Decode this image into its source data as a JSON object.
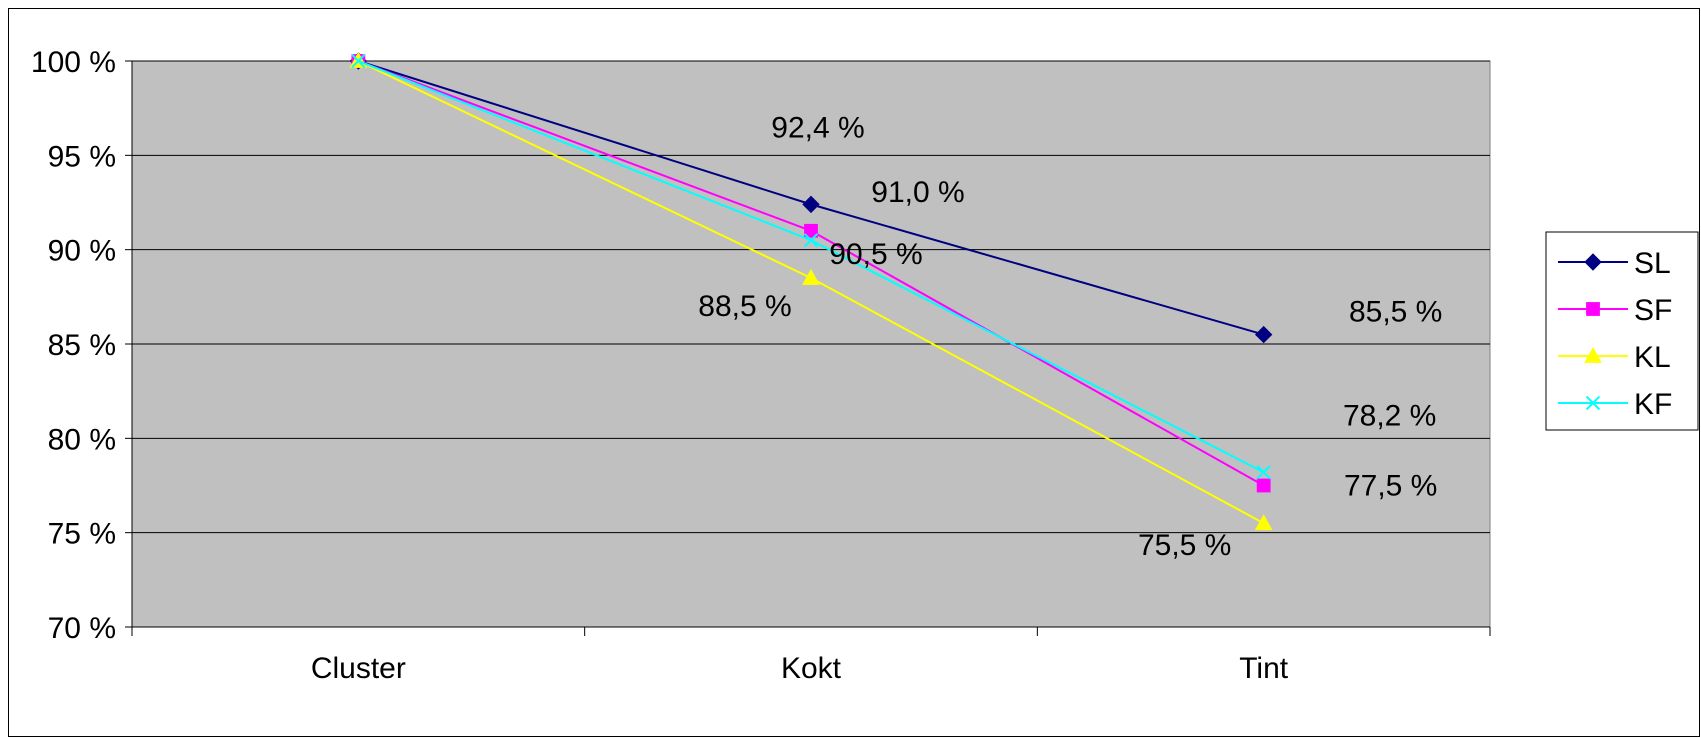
{
  "chart_data": {
    "type": "line",
    "title": "",
    "xlabel": "",
    "ylabel": "",
    "categories": [
      "Cluster",
      "Kokt",
      "Tint"
    ],
    "ylim": [
      70,
      100
    ],
    "ytick_step": 5,
    "ytick_labels": [
      "100 %",
      "95 %",
      "90 %",
      "85 %",
      "80 %",
      "75 %",
      "70 %"
    ],
    "grid": true,
    "plot_background": "#c0c0c0",
    "legend_position": "right",
    "series": [
      {
        "name": "SL",
        "values": [
          100,
          92.4,
          85.5
        ],
        "color": "#000080",
        "marker": "diamond"
      },
      {
        "name": "SF",
        "values": [
          100,
          91.0,
          77.5
        ],
        "color": "#ff00ff",
        "marker": "square"
      },
      {
        "name": "KL",
        "values": [
          100,
          88.5,
          75.5
        ],
        "color": "#ffff00",
        "marker": "triangle"
      },
      {
        "name": "KF",
        "values": [
          100,
          90.5,
          78.2
        ],
        "color": "#00ffff",
        "marker": "x"
      }
    ],
    "data_labels": [
      {
        "series": "SL",
        "category": "Kokt",
        "text": "92,4 %"
      },
      {
        "series": "SF",
        "category": "Kokt",
        "text": "91,0 %"
      },
      {
        "series": "KF",
        "category": "Kokt",
        "text": "90,5 %"
      },
      {
        "series": "KL",
        "category": "Kokt",
        "text": "88,5 %"
      },
      {
        "series": "SL",
        "category": "Tint",
        "text": "85,5 %"
      },
      {
        "series": "KF",
        "category": "Tint",
        "text": "78,2 %"
      },
      {
        "series": "SF",
        "category": "Tint",
        "text": "77,5 %"
      },
      {
        "series": "KL",
        "category": "Tint",
        "text": "75,5 %"
      }
    ]
  }
}
